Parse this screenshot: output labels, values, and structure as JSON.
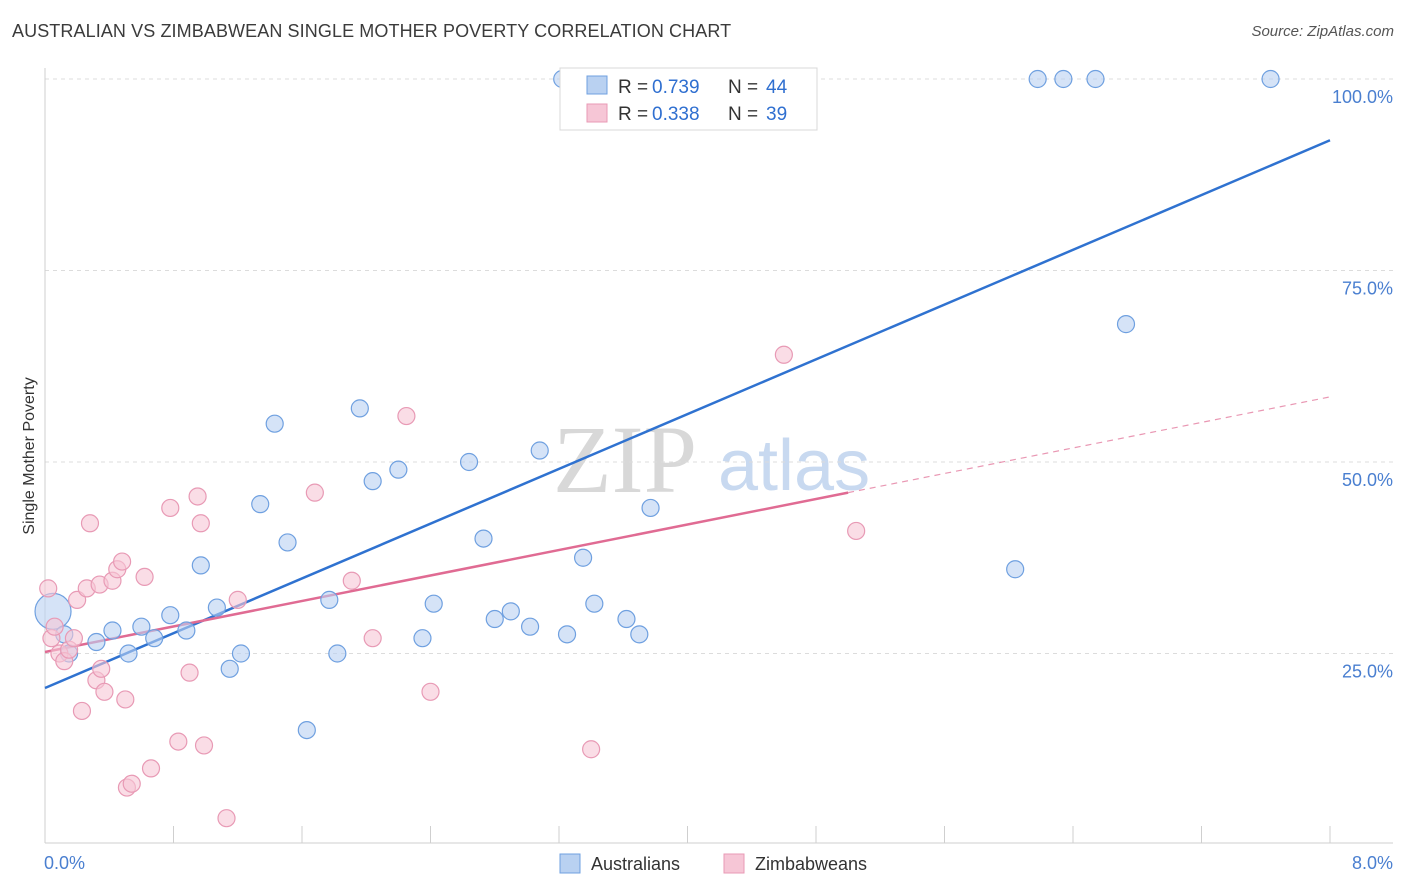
{
  "header": {
    "title": "AUSTRALIAN VS ZIMBABWEAN SINGLE MOTHER POVERTY CORRELATION CHART",
    "source": "Source: ZipAtlas.com"
  },
  "watermark": {
    "zip": "ZIP",
    "atlas": "atlas"
  },
  "chart_data": {
    "type": "scatter",
    "title": "AUSTRALIAN VS ZIMBABWEAN SINGLE MOTHER POVERTY CORRELATION CHART",
    "ylabel": "Single Mother Poverty",
    "xlabel": "",
    "xlim": [
      0,
      8
    ],
    "ylim": [
      0,
      103
    ],
    "x_tick_labels": {
      "left": "0.0%",
      "right": "8.0%"
    },
    "y_ticks": [
      {
        "value": 25,
        "label": "25.0%"
      },
      {
        "value": 50,
        "label": "50.0%"
      },
      {
        "value": 75,
        "label": "75.0%"
      },
      {
        "value": 100,
        "label": "100.0%"
      }
    ],
    "grid": "horizontal dashed",
    "legend_placement": "top-center",
    "legend": [
      {
        "name": "Australians",
        "r_label": "R =",
        "r_value": "0.739",
        "n_label": "N =",
        "n_value": "44"
      },
      {
        "name": "Zimbabweans",
        "r_label": "R =",
        "r_value": "0.338",
        "n_label": "N =",
        "n_value": "39"
      }
    ],
    "series": [
      {
        "name": "Australians",
        "color": "#6fa0e0",
        "fill": "#b9d1f1",
        "trend_color": "#2f72d0",
        "trend": {
          "x": [
            0,
            8
          ],
          "y": [
            20.5,
            92
          ]
        },
        "points": [
          {
            "x": 0.05,
            "y": 30.5,
            "big": true
          },
          {
            "x": 0.12,
            "y": 27.5
          },
          {
            "x": 0.15,
            "y": 25
          },
          {
            "x": 0.32,
            "y": 26.5
          },
          {
            "x": 0.42,
            "y": 28
          },
          {
            "x": 0.52,
            "y": 25
          },
          {
            "x": 0.6,
            "y": 28.5
          },
          {
            "x": 0.68,
            "y": 27
          },
          {
            "x": 0.78,
            "y": 30
          },
          {
            "x": 0.88,
            "y": 28
          },
          {
            "x": 0.97,
            "y": 36.5
          },
          {
            "x": 1.07,
            "y": 31
          },
          {
            "x": 1.15,
            "y": 23
          },
          {
            "x": 1.22,
            "y": 25
          },
          {
            "x": 1.34,
            "y": 44.5
          },
          {
            "x": 1.43,
            "y": 55
          },
          {
            "x": 1.51,
            "y": 39.5
          },
          {
            "x": 1.63,
            "y": 15
          },
          {
            "x": 1.77,
            "y": 32
          },
          {
            "x": 1.82,
            "y": 25
          },
          {
            "x": 1.96,
            "y": 57
          },
          {
            "x": 2.04,
            "y": 47.5
          },
          {
            "x": 2.2,
            "y": 49
          },
          {
            "x": 2.35,
            "y": 27
          },
          {
            "x": 2.42,
            "y": 31.5
          },
          {
            "x": 2.64,
            "y": 50
          },
          {
            "x": 2.73,
            "y": 40
          },
          {
            "x": 2.8,
            "y": 29.5
          },
          {
            "x": 2.9,
            "y": 30.5
          },
          {
            "x": 3.02,
            "y": 28.5
          },
          {
            "x": 3.08,
            "y": 51.5
          },
          {
            "x": 3.25,
            "y": 27.5
          },
          {
            "x": 3.35,
            "y": 37.5
          },
          {
            "x": 3.42,
            "y": 31.5
          },
          {
            "x": 3.62,
            "y": 29.5
          },
          {
            "x": 3.7,
            "y": 27.5
          },
          {
            "x": 3.77,
            "y": 44
          },
          {
            "x": 3.22,
            "y": 100
          },
          {
            "x": 6.18,
            "y": 100
          },
          {
            "x": 6.34,
            "y": 100
          },
          {
            "x": 6.54,
            "y": 100
          },
          {
            "x": 7.63,
            "y": 100
          },
          {
            "x": 6.73,
            "y": 68
          },
          {
            "x": 6.04,
            "y": 36
          }
        ]
      },
      {
        "name": "Zimbabweans",
        "color": "#e89ab5",
        "fill": "#f6c6d6",
        "trend_color": "#e06b93",
        "trend": {
          "x": [
            0,
            5.0
          ],
          "y": [
            25.2,
            46
          ]
        },
        "trend_dashed_to": {
          "x": 8,
          "y": 58.5
        },
        "points": [
          {
            "x": 0.02,
            "y": 33.5
          },
          {
            "x": 0.04,
            "y": 27
          },
          {
            "x": 0.06,
            "y": 28.5
          },
          {
            "x": 0.09,
            "y": 25
          },
          {
            "x": 0.12,
            "y": 24
          },
          {
            "x": 0.15,
            "y": 25.5
          },
          {
            "x": 0.18,
            "y": 27
          },
          {
            "x": 0.2,
            "y": 32
          },
          {
            "x": 0.23,
            "y": 17.5
          },
          {
            "x": 0.26,
            "y": 33.5
          },
          {
            "x": 0.28,
            "y": 42
          },
          {
            "x": 0.32,
            "y": 21.5
          },
          {
            "x": 0.34,
            "y": 34
          },
          {
            "x": 0.35,
            "y": 23
          },
          {
            "x": 0.37,
            "y": 20
          },
          {
            "x": 0.42,
            "y": 34.5
          },
          {
            "x": 0.45,
            "y": 36
          },
          {
            "x": 0.48,
            "y": 37
          },
          {
            "x": 0.5,
            "y": 19
          },
          {
            "x": 0.51,
            "y": 7.5
          },
          {
            "x": 0.54,
            "y": 8
          },
          {
            "x": 0.62,
            "y": 35
          },
          {
            "x": 0.66,
            "y": 10
          },
          {
            "x": 0.78,
            "y": 44
          },
          {
            "x": 0.83,
            "y": 13.5
          },
          {
            "x": 0.9,
            "y": 22.5
          },
          {
            "x": 0.95,
            "y": 45.5
          },
          {
            "x": 0.97,
            "y": 42
          },
          {
            "x": 0.99,
            "y": 13
          },
          {
            "x": 1.13,
            "y": 3.5
          },
          {
            "x": 1.2,
            "y": 32
          },
          {
            "x": 1.68,
            "y": 46
          },
          {
            "x": 1.91,
            "y": 34.5
          },
          {
            "x": 2.04,
            "y": 27
          },
          {
            "x": 2.25,
            "y": 56
          },
          {
            "x": 2.4,
            "y": 20
          },
          {
            "x": 3.4,
            "y": 12.5
          },
          {
            "x": 4.6,
            "y": 64
          },
          {
            "x": 5.05,
            "y": 41
          }
        ]
      }
    ]
  }
}
